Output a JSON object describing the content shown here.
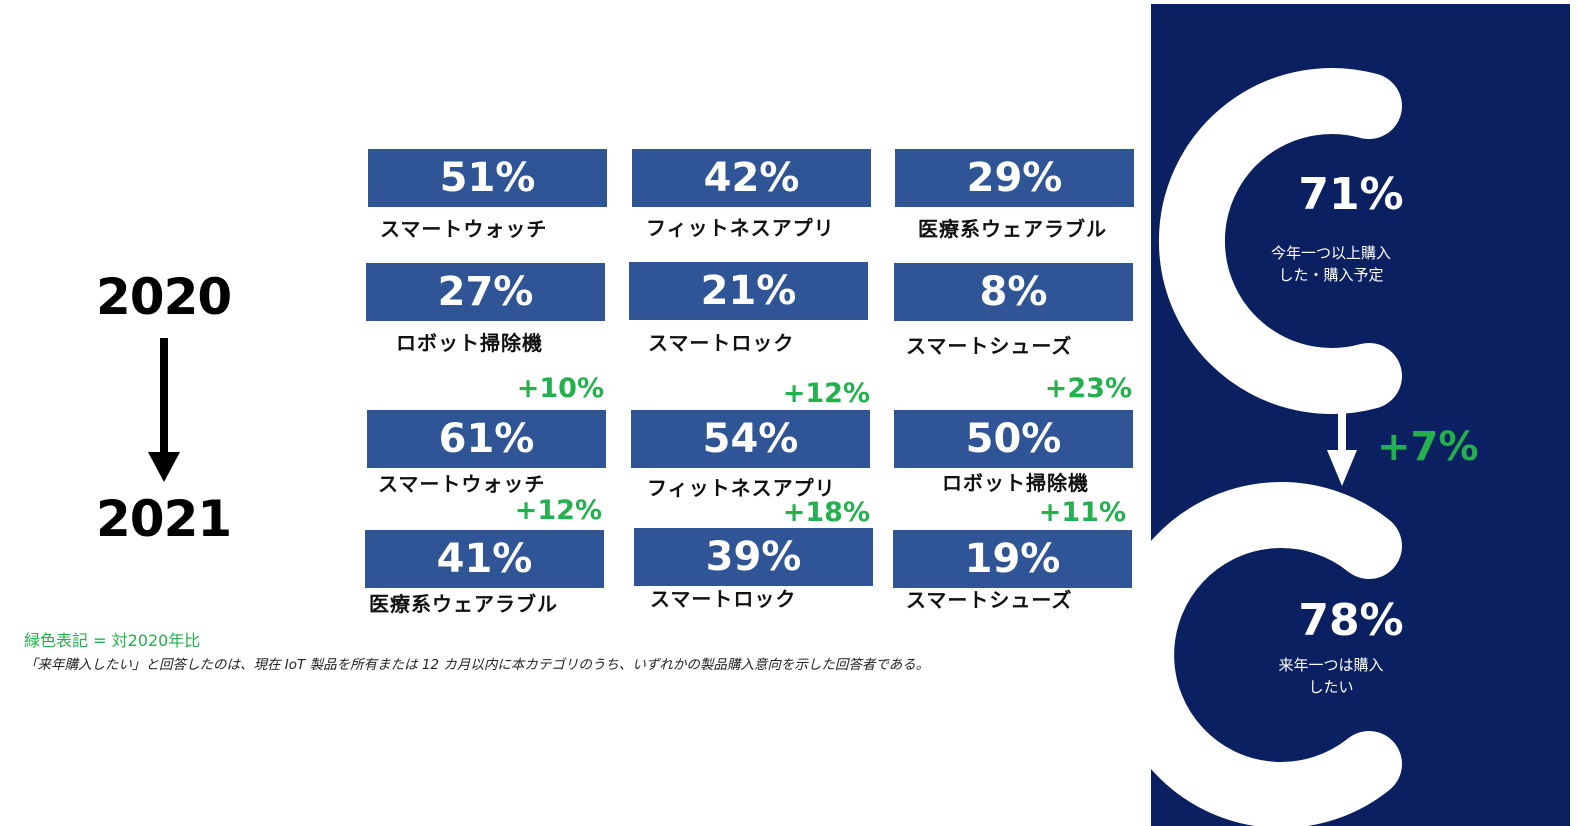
{
  "timeline": {
    "from_year": "2020",
    "to_year": "2021"
  },
  "chart_data": [
    {
      "type": "bar",
      "title": "2020",
      "categories": [
        "スマートウォッチ",
        "フィットネスアプリ",
        "医療系ウェアラブル",
        "ロボット掃除機",
        "スマートロック",
        "スマートシューズ"
      ],
      "values": [
        51,
        42,
        29,
        27,
        21,
        8
      ],
      "value_labels": [
        "51%",
        "42%",
        "29%",
        "27%",
        "21%",
        "8%"
      ],
      "unit": "%"
    },
    {
      "type": "bar",
      "title": "2021",
      "categories": [
        "スマートウォッチ",
        "フィットネスアプリ",
        "ロボット掃除機",
        "医療系ウェアラブル",
        "スマートロック",
        "スマートシューズ"
      ],
      "values": [
        61,
        54,
        50,
        41,
        39,
        19
      ],
      "value_labels": [
        "61%",
        "54%",
        "50%",
        "41%",
        "39%",
        "19%"
      ],
      "changes": [
        "+10%",
        "+12%",
        "+23%",
        "+12%",
        "+18%",
        "+11%"
      ],
      "unit": "%"
    }
  ],
  "notes": {
    "legend": "緑色表記 = 対2020年比",
    "footnote": "「来年購入したい」と回答したのは、現在 IoT 製品を所有または 12 カ月以内に本カテゴリのうち、いずれかの製品購入意向を示した回答者である。"
  },
  "summary_panel": {
    "top": {
      "value": "71%",
      "caption_line1": "今年一つ以上購入",
      "caption_line2": "した・購入予定"
    },
    "bottom": {
      "value": "78%",
      "caption_line1": "来年一つは購入",
      "caption_line2": "したい"
    },
    "change": "+7%"
  },
  "colors": {
    "tile": "#2f5597",
    "panel": "#0b2060",
    "positive": "#22b14c"
  }
}
